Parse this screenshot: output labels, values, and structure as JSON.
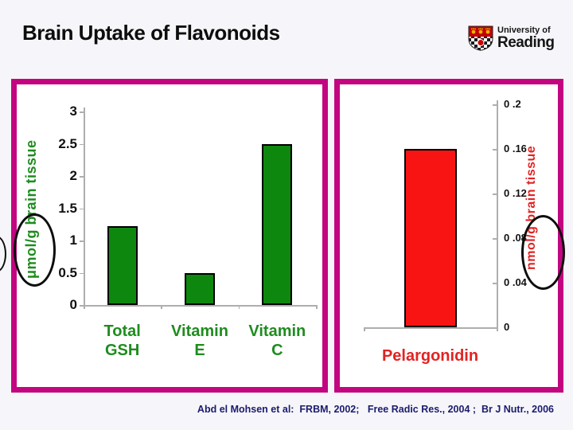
{
  "slide": {
    "title": "Brain Uptake of Flavonoids",
    "citation": "Abd el Mohsen et al:  FRBM, 2002;   Free Radic Res., 2004 ;  Br J Nutr., 2006"
  },
  "logo": {
    "line1": "University of",
    "line2": "Reading"
  },
  "colors": {
    "panel_border": "#c30680",
    "green_bar": "#0e870e",
    "green_text": "#1e8c1e",
    "red_bar": "#f81412",
    "red_text": "#e32222",
    "axis_line": "#aeaeae",
    "tick_text": "#111111",
    "citation_text": "#1b1b6e"
  },
  "annotations": {
    "left_oval": "hand-drawn oval circling the unit μmol/g on the left chart axis label",
    "right_oval": "hand-drawn oval circling the unit nmol/g on the right chart axis label"
  },
  "chart_data": [
    {
      "type": "bar",
      "title": "",
      "categories": [
        "Total GSH",
        "Vitamin E",
        "Vitamin C"
      ],
      "values": [
        1.22,
        0.5,
        2.5
      ],
      "xlabel": "",
      "ylabel": "μmol/g brain tissue",
      "ylim": [
        0,
        3
      ],
      "yticks": [
        "3",
        "2.5",
        "2",
        "1.5",
        "1",
        "0.5",
        "0"
      ],
      "grid": false,
      "legend": false,
      "bar_color": "#0e870e",
      "axis_side": "left",
      "category_color": "#1e8c1e"
    },
    {
      "type": "bar",
      "title": "",
      "categories": [
        "Pelargonidin"
      ],
      "values": [
        0.16
      ],
      "xlabel": "",
      "ylabel": "nmol/g brain tissue",
      "ylim": [
        0,
        0.2
      ],
      "yticks": [
        "0 .2",
        "0 .16",
        "0 .12",
        "0 .08",
        "0 .04",
        "0"
      ],
      "grid": false,
      "legend": false,
      "bar_color": "#f81412",
      "axis_side": "right",
      "category_color": "#e32222"
    }
  ]
}
